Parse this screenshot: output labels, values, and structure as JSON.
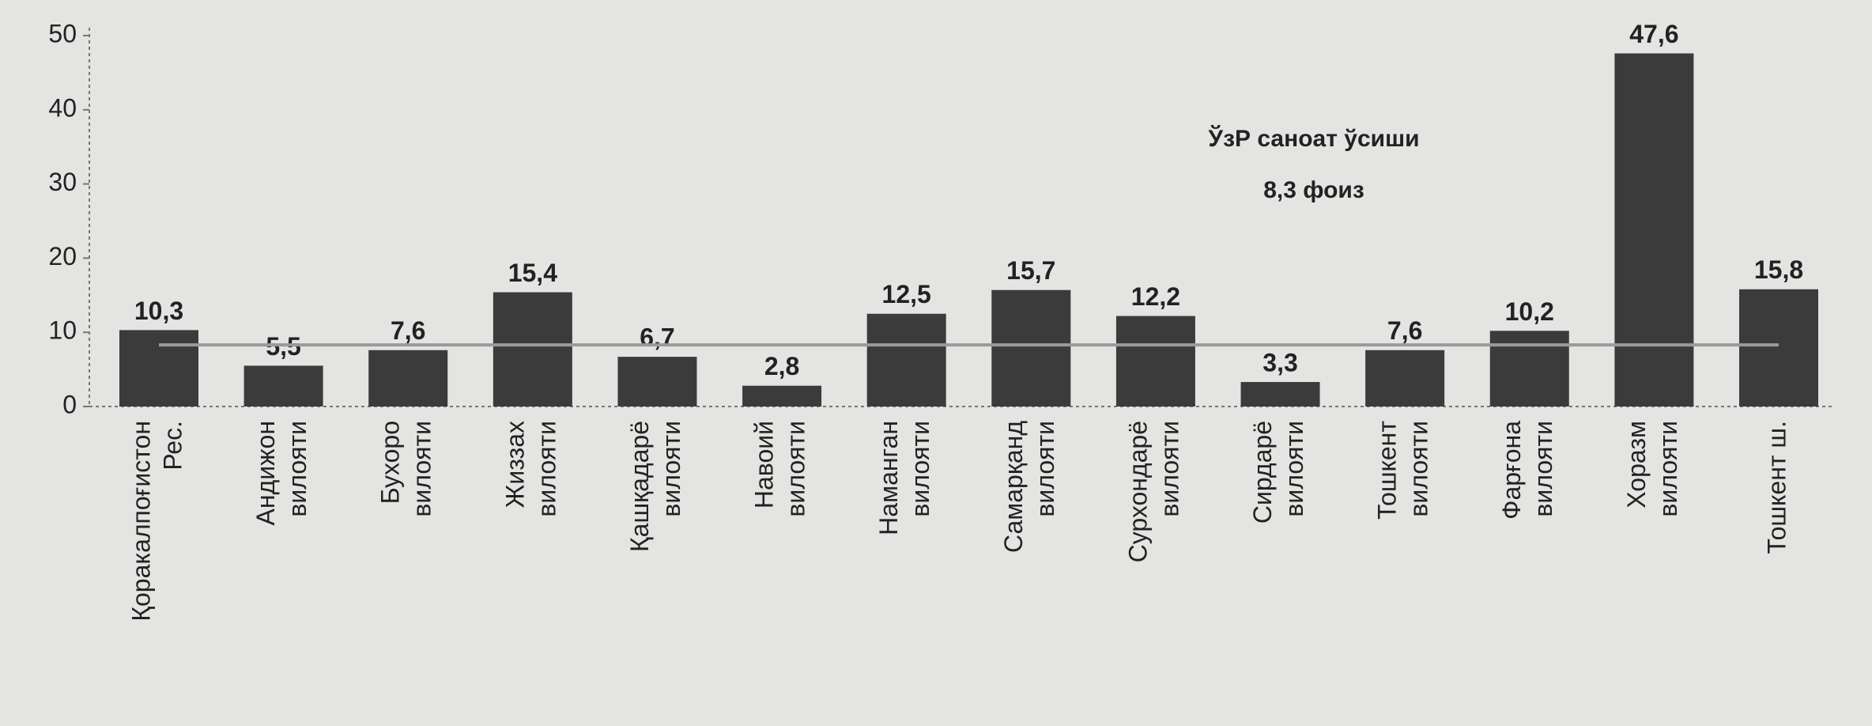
{
  "chart_data": {
    "type": "bar",
    "categories": [
      [
        "Қоракалпоғистон",
        "Рес."
      ],
      [
        "Андижон",
        "вилояти"
      ],
      [
        "Бухоро",
        "вилояти"
      ],
      [
        "Жиззах",
        "вилояти"
      ],
      [
        "Қашқадарё",
        "вилояти"
      ],
      [
        "Навоий",
        "вилояти"
      ],
      [
        "Наманган",
        "вилояти"
      ],
      [
        "Самарқанд",
        "вилояти"
      ],
      [
        "Сурхондарё",
        "вилояти"
      ],
      [
        "Сирдарё",
        "вилояти"
      ],
      [
        "Тошкент",
        "вилояти"
      ],
      [
        "Фарғона",
        "вилояти"
      ],
      [
        "Хоразм",
        "вилояти"
      ],
      [
        "Тошкент ш."
      ]
    ],
    "values": [
      10.3,
      5.5,
      7.6,
      15.4,
      6.7,
      2.8,
      12.5,
      15.7,
      12.2,
      3.3,
      7.6,
      10.2,
      47.6,
      15.8
    ],
    "value_labels": [
      "10,3",
      "5,5",
      "7,6",
      "15,4",
      "6,7",
      "2,8",
      "12,5",
      "15,7",
      "12,2",
      "3,3",
      "7,6",
      "10,2",
      "47,6",
      "15,8"
    ],
    "color": "#3b3b3b",
    "ylim": [
      0,
      50
    ],
    "yticks": [
      0,
      10,
      20,
      30,
      40,
      50
    ],
    "reference_line": {
      "value": 8.3,
      "color": "#9a9a9a"
    },
    "annotation": [
      "ЎзР саноат ўсиши",
      "8,3 фоиз"
    ]
  }
}
